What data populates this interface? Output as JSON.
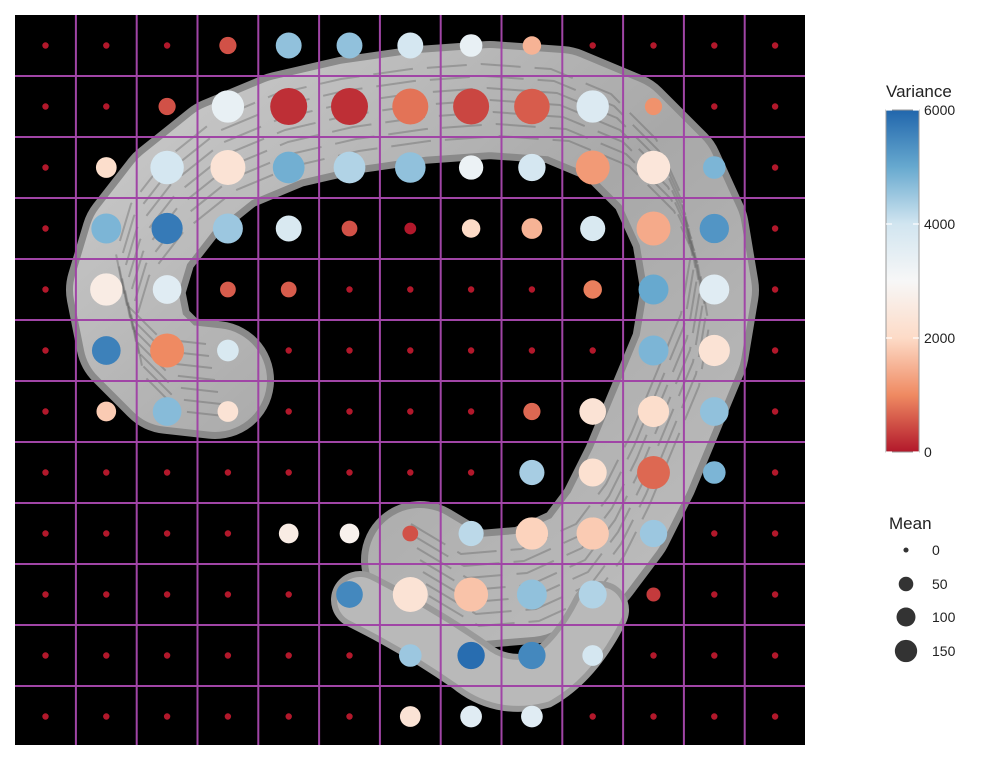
{
  "chart_data": {
    "type": "scatter",
    "grid": true,
    "background": "grayscale tissue section on black",
    "legend_position": "right",
    "color_scale": {
      "title": "Variance",
      "min": 0,
      "max": 6000,
      "ticks": [
        0,
        2000,
        4000,
        6000
      ],
      "ticks_labels": [
        "0",
        "2000",
        "4000",
        "6000"
      ],
      "palette": [
        "#b2182b",
        "#ef8a62",
        "#fddbc7",
        "#f7f7f7",
        "#d1e5f0",
        "#67a9cf",
        "#2166ac"
      ]
    },
    "size_scale": {
      "title": "Mean",
      "values": [
        0,
        50,
        100,
        150
      ],
      "labels": [
        "0",
        "50",
        "100",
        "150"
      ]
    },
    "grid_cols": 13,
    "grid_rows": 12,
    "points": [
      {
        "col": 1,
        "row": 1,
        "mean": 0,
        "variance": 0
      },
      {
        "col": 2,
        "row": 1,
        "mean": 0,
        "variance": 0
      },
      {
        "col": 3,
        "row": 1,
        "mean": 0,
        "variance": 0
      },
      {
        "col": 4,
        "row": 1,
        "mean": 20,
        "variance": 500
      },
      {
        "col": 5,
        "row": 1,
        "mean": 65,
        "variance": 4600
      },
      {
        "col": 6,
        "row": 1,
        "mean": 65,
        "variance": 4600
      },
      {
        "col": 7,
        "row": 1,
        "mean": 65,
        "variance": 3900
      },
      {
        "col": 8,
        "row": 1,
        "mean": 45,
        "variance": 3400
      },
      {
        "col": 9,
        "row": 1,
        "mean": 25,
        "variance": 1500
      },
      {
        "col": 10,
        "row": 1,
        "mean": 0,
        "variance": 0
      },
      {
        "col": 11,
        "row": 1,
        "mean": 0,
        "variance": 0
      },
      {
        "col": 12,
        "row": 1,
        "mean": 0,
        "variance": 0
      },
      {
        "col": 13,
        "row": 1,
        "mean": 0,
        "variance": 0
      },
      {
        "col": 1,
        "row": 2,
        "mean": 0,
        "variance": 0
      },
      {
        "col": 2,
        "row": 2,
        "mean": 0,
        "variance": 0
      },
      {
        "col": 3,
        "row": 2,
        "mean": 20,
        "variance": 500
      },
      {
        "col": 4,
        "row": 2,
        "mean": 115,
        "variance": 3400
      },
      {
        "col": 5,
        "row": 2,
        "mean": 160,
        "variance": 200
      },
      {
        "col": 6,
        "row": 2,
        "mean": 160,
        "variance": 200
      },
      {
        "col": 7,
        "row": 2,
        "mean": 150,
        "variance": 800
      },
      {
        "col": 8,
        "row": 2,
        "mean": 150,
        "variance": 400
      },
      {
        "col": 9,
        "row": 2,
        "mean": 145,
        "variance": 600
      },
      {
        "col": 10,
        "row": 2,
        "mean": 115,
        "variance": 3700
      },
      {
        "col": 11,
        "row": 2,
        "mean": 20,
        "variance": 1100
      },
      {
        "col": 12,
        "row": 2,
        "mean": 0,
        "variance": 0
      },
      {
        "col": 13,
        "row": 2,
        "mean": 0,
        "variance": 0
      },
      {
        "col": 1,
        "row": 3,
        "mean": 0,
        "variance": 0
      },
      {
        "col": 2,
        "row": 3,
        "mean": 35,
        "variance": 2100
      },
      {
        "col": 3,
        "row": 3,
        "mean": 125,
        "variance": 3900
      },
      {
        "col": 4,
        "row": 3,
        "mean": 140,
        "variance": 2300
      },
      {
        "col": 5,
        "row": 3,
        "mean": 110,
        "variance": 4900
      },
      {
        "col": 6,
        "row": 3,
        "mean": 110,
        "variance": 4300
      },
      {
        "col": 7,
        "row": 3,
        "mean": 100,
        "variance": 4600
      },
      {
        "col": 8,
        "row": 3,
        "mean": 55,
        "variance": 3300
      },
      {
        "col": 9,
        "row": 3,
        "mean": 75,
        "variance": 3900
      },
      {
        "col": 10,
        "row": 3,
        "mean": 130,
        "variance": 1200
      },
      {
        "col": 11,
        "row": 3,
        "mean": 125,
        "variance": 2400
      },
      {
        "col": 12,
        "row": 3,
        "mean": 45,
        "variance": 4800
      },
      {
        "col": 13,
        "row": 3,
        "mean": 0,
        "variance": 0
      },
      {
        "col": 1,
        "row": 4,
        "mean": 0,
        "variance": 0
      },
      {
        "col": 2,
        "row": 4,
        "mean": 95,
        "variance": 4800
      },
      {
        "col": 3,
        "row": 4,
        "mean": 105,
        "variance": 5700
      },
      {
        "col": 4,
        "row": 4,
        "mean": 95,
        "variance": 4500
      },
      {
        "col": 5,
        "row": 4,
        "mean": 65,
        "variance": 3800
      },
      {
        "col": 6,
        "row": 4,
        "mean": 15,
        "variance": 500
      },
      {
        "col": 7,
        "row": 4,
        "mean": 5,
        "variance": 0
      },
      {
        "col": 8,
        "row": 4,
        "mean": 25,
        "variance": 2000
      },
      {
        "col": 9,
        "row": 4,
        "mean": 35,
        "variance": 1500
      },
      {
        "col": 10,
        "row": 4,
        "mean": 60,
        "variance": 3800
      },
      {
        "col": 11,
        "row": 4,
        "mean": 130,
        "variance": 1400
      },
      {
        "col": 12,
        "row": 4,
        "mean": 90,
        "variance": 5300
      },
      {
        "col": 13,
        "row": 4,
        "mean": 0,
        "variance": 0
      },
      {
        "col": 1,
        "row": 5,
        "mean": 0,
        "variance": 0
      },
      {
        "col": 2,
        "row": 5,
        "mean": 115,
        "variance": 2600
      },
      {
        "col": 3,
        "row": 5,
        "mean": 85,
        "variance": 3600
      },
      {
        "col": 4,
        "row": 5,
        "mean": 15,
        "variance": 600
      },
      {
        "col": 5,
        "row": 5,
        "mean": 15,
        "variance": 600
      },
      {
        "col": 6,
        "row": 5,
        "mean": 0,
        "variance": 0
      },
      {
        "col": 7,
        "row": 5,
        "mean": 0,
        "variance": 0
      },
      {
        "col": 8,
        "row": 5,
        "mean": 0,
        "variance": 0
      },
      {
        "col": 9,
        "row": 5,
        "mean": 0,
        "variance": 0
      },
      {
        "col": 10,
        "row": 5,
        "mean": 25,
        "variance": 900
      },
      {
        "col": 11,
        "row": 5,
        "mean": 95,
        "variance": 5000
      },
      {
        "col": 12,
        "row": 5,
        "mean": 95,
        "variance": 3600
      },
      {
        "col": 13,
        "row": 5,
        "mean": 0,
        "variance": 0
      },
      {
        "col": 1,
        "row": 6,
        "mean": 0,
        "variance": 0
      },
      {
        "col": 2,
        "row": 6,
        "mean": 85,
        "variance": 5600
      },
      {
        "col": 3,
        "row": 6,
        "mean": 130,
        "variance": 1000
      },
      {
        "col": 4,
        "row": 6,
        "mean": 40,
        "variance": 3800
      },
      {
        "col": 5,
        "row": 6,
        "mean": 0,
        "variance": 0
      },
      {
        "col": 6,
        "row": 6,
        "mean": 0,
        "variance": 0
      },
      {
        "col": 7,
        "row": 6,
        "mean": 0,
        "variance": 0
      },
      {
        "col": 8,
        "row": 6,
        "mean": 0,
        "variance": 0
      },
      {
        "col": 9,
        "row": 6,
        "mean": 0,
        "variance": 0
      },
      {
        "col": 10,
        "row": 6,
        "mean": 0,
        "variance": 0
      },
      {
        "col": 11,
        "row": 6,
        "mean": 95,
        "variance": 4800
      },
      {
        "col": 12,
        "row": 6,
        "mean": 105,
        "variance": 2300
      },
      {
        "col": 13,
        "row": 6,
        "mean": 0,
        "variance": 0
      },
      {
        "col": 1,
        "row": 7,
        "mean": 0,
        "variance": 0
      },
      {
        "col": 2,
        "row": 7,
        "mean": 30,
        "variance": 1800
      },
      {
        "col": 3,
        "row": 7,
        "mean": 85,
        "variance": 4700
      },
      {
        "col": 4,
        "row": 7,
        "mean": 35,
        "variance": 2300
      },
      {
        "col": 5,
        "row": 7,
        "mean": 0,
        "variance": 0
      },
      {
        "col": 6,
        "row": 7,
        "mean": 0,
        "variance": 0
      },
      {
        "col": 7,
        "row": 7,
        "mean": 0,
        "variance": 0
      },
      {
        "col": 8,
        "row": 7,
        "mean": 0,
        "variance": 0
      },
      {
        "col": 9,
        "row": 7,
        "mean": 20,
        "variance": 700
      },
      {
        "col": 10,
        "row": 7,
        "mean": 70,
        "variance": 2300
      },
      {
        "col": 11,
        "row": 7,
        "mean": 105,
        "variance": 2100
      },
      {
        "col": 12,
        "row": 7,
        "mean": 85,
        "variance": 4600
      },
      {
        "col": 13,
        "row": 7,
        "mean": 0,
        "variance": 0
      },
      {
        "col": 1,
        "row": 8,
        "mean": 0,
        "variance": 0
      },
      {
        "col": 2,
        "row": 8,
        "mean": 0,
        "variance": 0
      },
      {
        "col": 3,
        "row": 8,
        "mean": 0,
        "variance": 0
      },
      {
        "col": 4,
        "row": 8,
        "mean": 0,
        "variance": 0
      },
      {
        "col": 5,
        "row": 8,
        "mean": 0,
        "variance": 0
      },
      {
        "col": 6,
        "row": 8,
        "mean": 0,
        "variance": 0
      },
      {
        "col": 7,
        "row": 8,
        "mean": 0,
        "variance": 0
      },
      {
        "col": 8,
        "row": 8,
        "mean": 0,
        "variance": 0
      },
      {
        "col": 9,
        "row": 8,
        "mean": 60,
        "variance": 4400
      },
      {
        "col": 10,
        "row": 8,
        "mean": 80,
        "variance": 2200
      },
      {
        "col": 11,
        "row": 8,
        "mean": 120,
        "variance": 700
      },
      {
        "col": 12,
        "row": 8,
        "mean": 45,
        "variance": 4800
      },
      {
        "col": 13,
        "row": 8,
        "mean": 0,
        "variance": 0
      },
      {
        "col": 1,
        "row": 9,
        "mean": 0,
        "variance": 0
      },
      {
        "col": 2,
        "row": 9,
        "mean": 0,
        "variance": 0
      },
      {
        "col": 3,
        "row": 9,
        "mean": 0,
        "variance": 0
      },
      {
        "col": 4,
        "row": 9,
        "mean": 0,
        "variance": 0
      },
      {
        "col": 5,
        "row": 9,
        "mean": 30,
        "variance": 2600
      },
      {
        "col": 6,
        "row": 9,
        "mean": 30,
        "variance": 2800
      },
      {
        "col": 7,
        "row": 9,
        "mean": 15,
        "variance": 500
      },
      {
        "col": 8,
        "row": 9,
        "mean": 60,
        "variance": 4200
      },
      {
        "col": 9,
        "row": 9,
        "mean": 115,
        "variance": 1900
      },
      {
        "col": 10,
        "row": 9,
        "mean": 115,
        "variance": 1800
      },
      {
        "col": 11,
        "row": 9,
        "mean": 75,
        "variance": 4500
      },
      {
        "col": 12,
        "row": 9,
        "mean": 0,
        "variance": 0
      },
      {
        "col": 13,
        "row": 9,
        "mean": 0,
        "variance": 0
      },
      {
        "col": 1,
        "row": 10,
        "mean": 0,
        "variance": 0
      },
      {
        "col": 2,
        "row": 10,
        "mean": 0,
        "variance": 0
      },
      {
        "col": 3,
        "row": 10,
        "mean": 0,
        "variance": 0
      },
      {
        "col": 4,
        "row": 10,
        "mean": 0,
        "variance": 0
      },
      {
        "col": 5,
        "row": 10,
        "mean": 0,
        "variance": 0
      },
      {
        "col": 6,
        "row": 10,
        "mean": 70,
        "variance": 5500
      },
      {
        "col": 7,
        "row": 10,
        "mean": 140,
        "variance": 2300
      },
      {
        "col": 8,
        "row": 10,
        "mean": 130,
        "variance": 1700
      },
      {
        "col": 9,
        "row": 10,
        "mean": 95,
        "variance": 4600
      },
      {
        "col": 10,
        "row": 10,
        "mean": 80,
        "variance": 4300
      },
      {
        "col": 11,
        "row": 10,
        "mean": 10,
        "variance": 300
      },
      {
        "col": 12,
        "row": 10,
        "mean": 0,
        "variance": 0
      },
      {
        "col": 13,
        "row": 10,
        "mean": 0,
        "variance": 0
      },
      {
        "col": 1,
        "row": 11,
        "mean": 0,
        "variance": 0
      },
      {
        "col": 2,
        "row": 11,
        "mean": 0,
        "variance": 0
      },
      {
        "col": 3,
        "row": 11,
        "mean": 0,
        "variance": 0
      },
      {
        "col": 4,
        "row": 11,
        "mean": 0,
        "variance": 0
      },
      {
        "col": 5,
        "row": 11,
        "mean": 0,
        "variance": 0
      },
      {
        "col": 6,
        "row": 11,
        "mean": 0,
        "variance": 0
      },
      {
        "col": 7,
        "row": 11,
        "mean": 45,
        "variance": 4500
      },
      {
        "col": 8,
        "row": 11,
        "mean": 75,
        "variance": 5900
      },
      {
        "col": 9,
        "row": 11,
        "mean": 75,
        "variance": 5500
      },
      {
        "col": 10,
        "row": 11,
        "mean": 35,
        "variance": 3900
      },
      {
        "col": 11,
        "row": 11,
        "mean": 0,
        "variance": 0
      },
      {
        "col": 12,
        "row": 11,
        "mean": 0,
        "variance": 0
      },
      {
        "col": 13,
        "row": 11,
        "mean": 0,
        "variance": 0
      },
      {
        "col": 1,
        "row": 12,
        "mean": 0,
        "variance": 0
      },
      {
        "col": 2,
        "row": 12,
        "mean": 0,
        "variance": 0
      },
      {
        "col": 3,
        "row": 12,
        "mean": 0,
        "variance": 0
      },
      {
        "col": 4,
        "row": 12,
        "mean": 0,
        "variance": 0
      },
      {
        "col": 5,
        "row": 12,
        "mean": 0,
        "variance": 0
      },
      {
        "col": 6,
        "row": 12,
        "mean": 0,
        "variance": 0
      },
      {
        "col": 7,
        "row": 12,
        "mean": 35,
        "variance": 2300
      },
      {
        "col": 8,
        "row": 12,
        "mean": 40,
        "variance": 3600
      },
      {
        "col": 9,
        "row": 12,
        "mean": 40,
        "variance": 3600
      },
      {
        "col": 10,
        "row": 12,
        "mean": 0,
        "variance": 0
      },
      {
        "col": 11,
        "row": 12,
        "mean": 0,
        "variance": 0
      },
      {
        "col": 12,
        "row": 12,
        "mean": 0,
        "variance": 0
      },
      {
        "col": 13,
        "row": 12,
        "mean": 0,
        "variance": 0
      }
    ]
  }
}
